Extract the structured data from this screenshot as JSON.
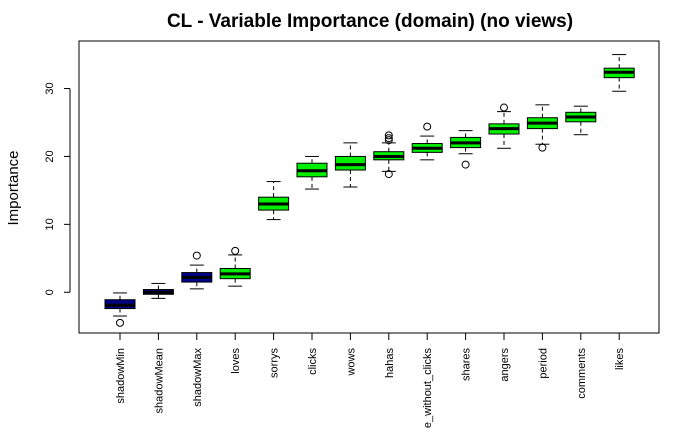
{
  "chart_data": {
    "type": "box",
    "title": "CL - Variable Importance (domain) (no views)",
    "ylabel": "Importance",
    "xlabel": "",
    "ylim": [
      -6,
      37
    ],
    "yticks": [
      0,
      10,
      20,
      30
    ],
    "grid": false,
    "colors": {
      "shadow": "#00008b",
      "real": "#00ee00"
    },
    "categories": [
      "shadowMin",
      "shadowMean",
      "shadowMax",
      "loves",
      "sorrys",
      "clicks",
      "wows",
      "hahas",
      "e_without_clicks",
      "shares",
      "angers",
      "period",
      "comments",
      "likes"
    ],
    "boxes": [
      {
        "name": "shadowMin",
        "group": "shadow",
        "whisker_low": -3.5,
        "q1": -2.4,
        "median": -1.9,
        "q3": -1.1,
        "whisker_high": -0.1,
        "outliers": [
          -4.5
        ]
      },
      {
        "name": "shadowMean",
        "group": "shadow",
        "whisker_low": -0.9,
        "q1": -0.3,
        "median": 0.0,
        "q3": 0.4,
        "whisker_high": 1.3,
        "outliers": []
      },
      {
        "name": "shadowMax",
        "group": "shadow",
        "whisker_low": 0.5,
        "q1": 1.5,
        "median": 2.2,
        "q3": 2.9,
        "whisker_high": 4.0,
        "outliers": [
          5.4
        ]
      },
      {
        "name": "loves",
        "group": "real",
        "whisker_low": 0.9,
        "q1": 2.0,
        "median": 2.7,
        "q3": 3.5,
        "whisker_high": 5.5,
        "outliers": [
          6.1
        ]
      },
      {
        "name": "sorrys",
        "group": "real",
        "whisker_low": 10.7,
        "q1": 12.1,
        "median": 13.0,
        "q3": 14.0,
        "whisker_high": 16.3,
        "outliers": []
      },
      {
        "name": "clicks",
        "group": "real",
        "whisker_low": 15.2,
        "q1": 17.0,
        "median": 17.9,
        "q3": 19.0,
        "whisker_high": 20.0,
        "outliers": []
      },
      {
        "name": "wows",
        "group": "real",
        "whisker_low": 15.5,
        "q1": 18.0,
        "median": 18.8,
        "q3": 20.0,
        "whisker_high": 22.0,
        "outliers": []
      },
      {
        "name": "hahas",
        "group": "real",
        "whisker_low": 17.8,
        "q1": 19.5,
        "median": 20.0,
        "q3": 20.7,
        "whisker_high": 22.0,
        "outliers": [
          17.4,
          22.4,
          22.7,
          23.1
        ]
      },
      {
        "name": "e_without_clicks",
        "group": "real",
        "whisker_low": 19.5,
        "q1": 20.6,
        "median": 21.2,
        "q3": 21.9,
        "whisker_high": 23.0,
        "outliers": [
          24.4
        ]
      },
      {
        "name": "shares",
        "group": "real",
        "whisker_low": 20.4,
        "q1": 21.3,
        "median": 22.0,
        "q3": 22.8,
        "whisker_high": 23.8,
        "outliers": [
          18.8
        ]
      },
      {
        "name": "angers",
        "group": "real",
        "whisker_low": 21.2,
        "q1": 23.3,
        "median": 24.1,
        "q3": 24.8,
        "whisker_high": 26.6,
        "outliers": [
          27.2
        ]
      },
      {
        "name": "period",
        "group": "real",
        "whisker_low": 21.8,
        "q1": 24.1,
        "median": 24.9,
        "q3": 25.7,
        "whisker_high": 27.6,
        "outliers": [
          21.3
        ]
      },
      {
        "name": "comments",
        "group": "real",
        "whisker_low": 23.2,
        "q1": 25.1,
        "median": 25.8,
        "q3": 26.5,
        "whisker_high": 27.4,
        "outliers": []
      },
      {
        "name": "likes",
        "group": "real",
        "whisker_low": 29.6,
        "q1": 31.6,
        "median": 32.4,
        "q3": 33.0,
        "whisker_high": 35.0,
        "outliers": []
      }
    ]
  }
}
